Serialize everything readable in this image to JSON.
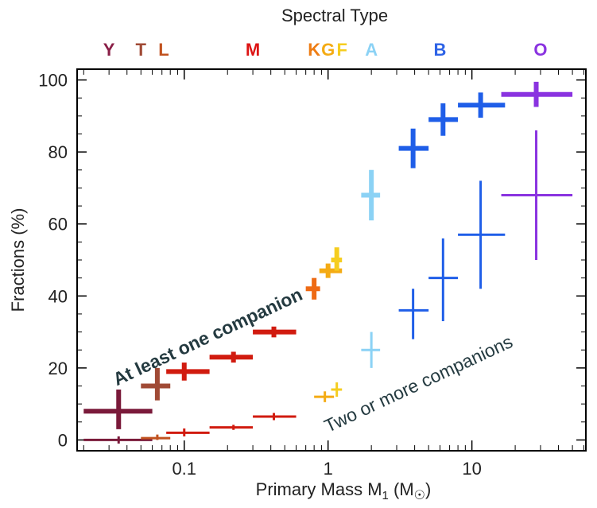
{
  "chart_data": {
    "type": "scatter",
    "title": "Spectral Type",
    "xlabel": "Primary Mass M",
    "xlabel_sub": "1",
    "xlabel_unit_open": " (M",
    "xlabel_unit_sym": "☉",
    "xlabel_unit_close": ")",
    "ylabel": "Fractions (%)",
    "xscale": "log",
    "xlim": [
      0.018,
      62
    ],
    "ylim": [
      -3,
      103
    ],
    "grid": false,
    "xticks": [
      {
        "value": 0.1,
        "label": "0.1"
      },
      {
        "value": 1,
        "label": "1"
      },
      {
        "value": 10,
        "label": "10"
      }
    ],
    "yticks": [
      0,
      20,
      40,
      60,
      80,
      100
    ],
    "spectral_types": [
      {
        "label": "Y",
        "x": 0.03,
        "color": "#8a1f47"
      },
      {
        "label": "T",
        "x": 0.05,
        "color": "#a04a35"
      },
      {
        "label": "L",
        "x": 0.072,
        "color": "#c1521f"
      },
      {
        "label": "M",
        "x": 0.3,
        "color": "#dd1414"
      },
      {
        "label": "K",
        "x": 0.8,
        "color": "#ee7d14"
      },
      {
        "label": "G",
        "x": 1.0,
        "color": "#f4ab14"
      },
      {
        "label": "F",
        "x": 1.25,
        "color": "#f5cd1f"
      },
      {
        "label": "A",
        "x": 2.0,
        "color": "#8bd2f5"
      },
      {
        "label": "B",
        "x": 6.0,
        "color": "#2e63e6"
      },
      {
        "label": "O",
        "x": 30,
        "color": "#8a33e0"
      }
    ],
    "series": [
      {
        "name": "At least one companion",
        "thick": true,
        "points": [
          {
            "x": 0.035,
            "y": 8,
            "xlo": 0.02,
            "xhi": 0.06,
            "ylo": 3,
            "yhi": 14,
            "color": "#7a1a3a"
          },
          {
            "x": 0.065,
            "y": 15,
            "xlo": 0.05,
            "xhi": 0.08,
            "ylo": 11,
            "yhi": 20,
            "color": "#a04a35"
          },
          {
            "x": 0.1,
            "y": 19,
            "xlo": 0.075,
            "xhi": 0.15,
            "ylo": 16.5,
            "yhi": 21.5,
            "color": "#d11b0f"
          },
          {
            "x": 0.22,
            "y": 23,
            "xlo": 0.15,
            "xhi": 0.3,
            "ylo": 21.5,
            "yhi": 24.5,
            "color": "#d11b0f"
          },
          {
            "x": 0.42,
            "y": 30,
            "xlo": 0.3,
            "xhi": 0.6,
            "ylo": 28.5,
            "yhi": 31.5,
            "color": "#d11b0f"
          },
          {
            "x": 0.8,
            "y": 42,
            "xlo": 0.7,
            "xhi": 0.88,
            "ylo": 39,
            "yhi": 45,
            "color": "#ee6a14"
          },
          {
            "x": 1.0,
            "y": 47,
            "xlo": 0.87,
            "xhi": 1.25,
            "ylo": 45,
            "yhi": 49,
            "color": "#f4ab14"
          },
          {
            "x": 1.15,
            "y": 50,
            "xlo": 1.05,
            "xhi": 1.25,
            "ylo": 47,
            "yhi": 53.5,
            "color": "#f5cd1f"
          },
          {
            "x": 2.0,
            "y": 68,
            "xlo": 1.7,
            "xhi": 2.3,
            "ylo": 61,
            "yhi": 75,
            "color": "#8bd2f5"
          },
          {
            "x": 3.9,
            "y": 81,
            "xlo": 3.1,
            "xhi": 5.0,
            "ylo": 75.5,
            "yhi": 86.5,
            "color": "#1f5ee8"
          },
          {
            "x": 6.3,
            "y": 89,
            "xlo": 5.0,
            "xhi": 8.0,
            "ylo": 84.5,
            "yhi": 93.5,
            "color": "#1f5ee8"
          },
          {
            "x": 11.5,
            "y": 93,
            "xlo": 8.0,
            "xhi": 17.0,
            "ylo": 89.5,
            "yhi": 96.5,
            "color": "#1f5ee8"
          },
          {
            "x": 28,
            "y": 96,
            "xlo": 16,
            "xhi": 50,
            "ylo": 92.5,
            "yhi": 99.5,
            "color": "#8a33e0"
          }
        ]
      },
      {
        "name": "Two or more companions",
        "thick": false,
        "points": [
          {
            "x": 0.035,
            "y": 0,
            "xlo": 0.02,
            "xhi": 0.06,
            "ylo": -1,
            "yhi": 1,
            "color": "#7a1a3a"
          },
          {
            "x": 0.065,
            "y": 0.5,
            "xlo": 0.05,
            "xhi": 0.08,
            "ylo": 0,
            "yhi": 1.5,
            "color": "#c1521f"
          },
          {
            "x": 0.1,
            "y": 2,
            "xlo": 0.075,
            "xhi": 0.15,
            "ylo": 1,
            "yhi": 3.2,
            "color": "#d11b0f"
          },
          {
            "x": 0.22,
            "y": 3.5,
            "xlo": 0.15,
            "xhi": 0.3,
            "ylo": 2.8,
            "yhi": 4.2,
            "color": "#d11b0f"
          },
          {
            "x": 0.42,
            "y": 6.5,
            "xlo": 0.3,
            "xhi": 0.6,
            "ylo": 5.5,
            "yhi": 7.5,
            "color": "#d11b0f"
          },
          {
            "x": 0.95,
            "y": 12,
            "xlo": 0.8,
            "xhi": 1.1,
            "ylo": 10.5,
            "yhi": 13.5,
            "color": "#f4ab14"
          },
          {
            "x": 1.15,
            "y": 14,
            "xlo": 1.05,
            "xhi": 1.25,
            "ylo": 12,
            "yhi": 16,
            "color": "#f5cd1f"
          },
          {
            "x": 2.0,
            "y": 25,
            "xlo": 1.7,
            "xhi": 2.3,
            "ylo": 20,
            "yhi": 30,
            "color": "#8bd2f5"
          },
          {
            "x": 3.9,
            "y": 36,
            "xlo": 3.1,
            "xhi": 5.0,
            "ylo": 28,
            "yhi": 42,
            "color": "#1f5ee8"
          },
          {
            "x": 6.3,
            "y": 45,
            "xlo": 5.0,
            "xhi": 8.0,
            "ylo": 33,
            "yhi": 56,
            "color": "#1f5ee8"
          },
          {
            "x": 11.5,
            "y": 57,
            "xlo": 8.0,
            "xhi": 17.0,
            "ylo": 42,
            "yhi": 72,
            "color": "#1f5ee8"
          },
          {
            "x": 28,
            "y": 68,
            "xlo": 16,
            "xhi": 50,
            "ylo": 50,
            "yhi": 86,
            "color": "#8a33e0"
          }
        ]
      }
    ],
    "annotations": [
      {
        "text": "At least one companion",
        "style": "bold",
        "x": 0.034,
        "y": 15,
        "angle": -25
      },
      {
        "text": "Two or more companions",
        "style": "regular",
        "x": 1.0,
        "y": 2,
        "angle": -25
      }
    ]
  }
}
